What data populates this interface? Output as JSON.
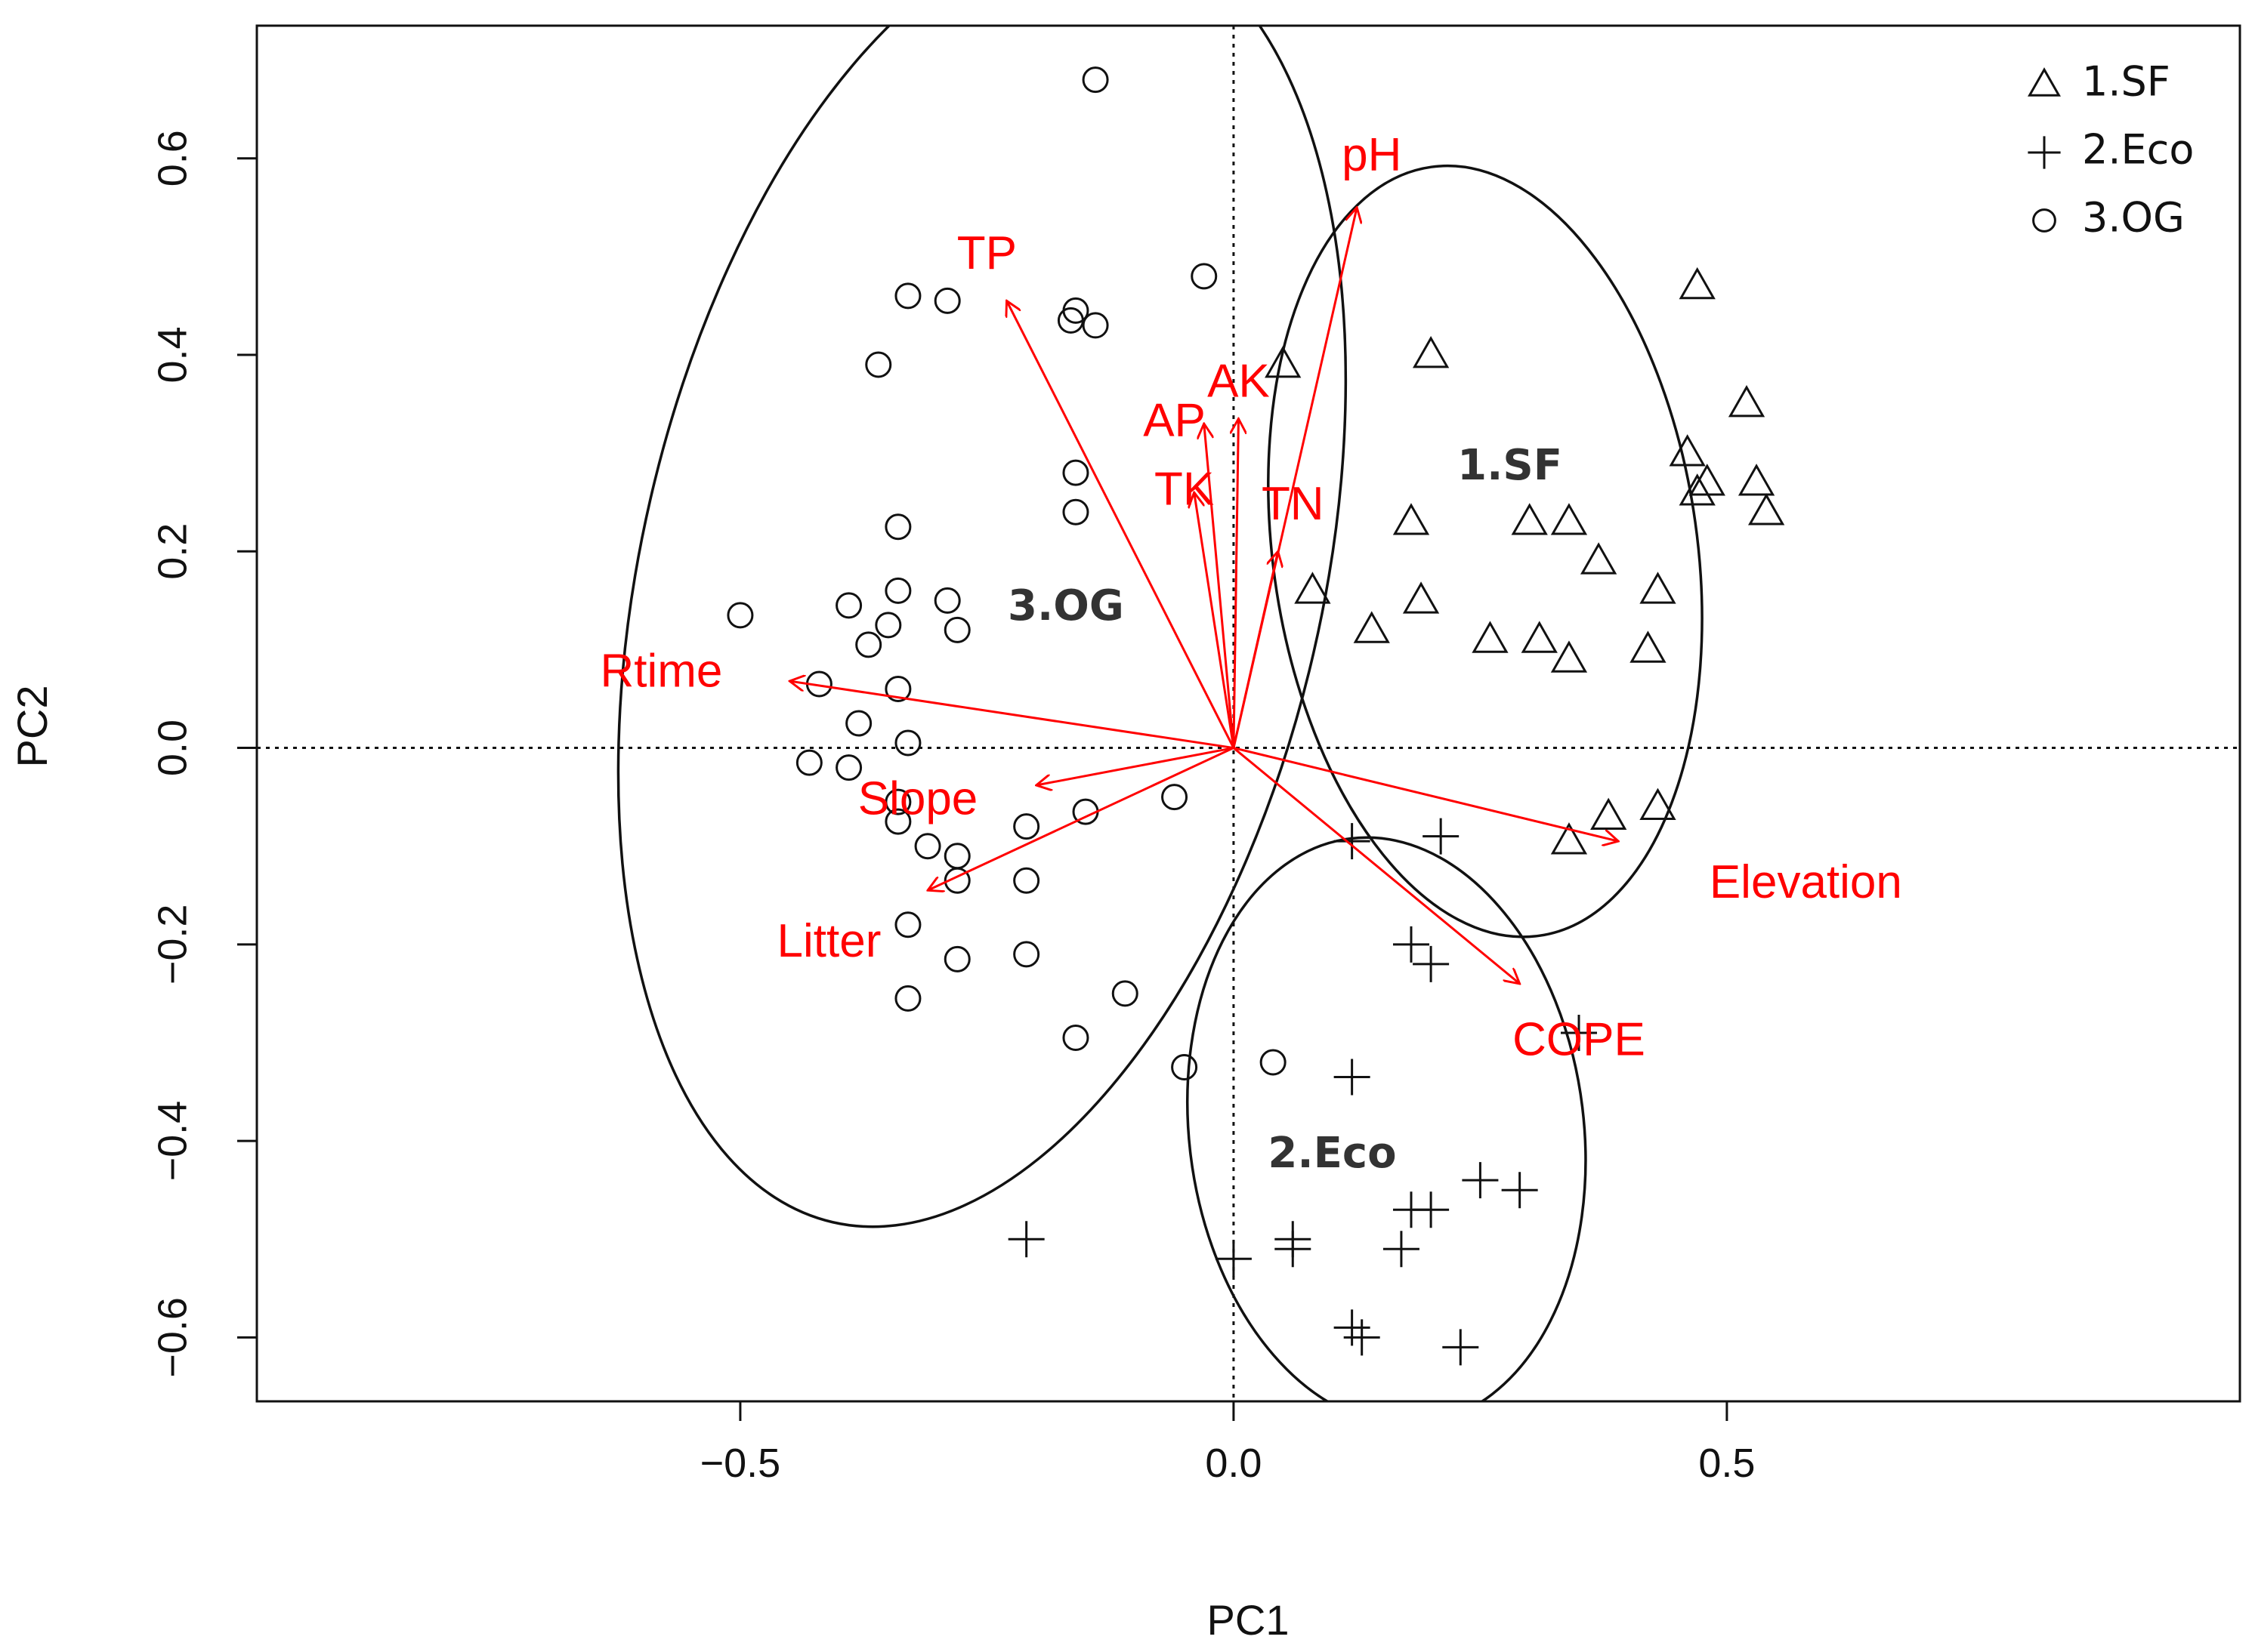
{
  "chart_data": {
    "type": "scatter",
    "subtype": "pca-biplot",
    "xlabel": "PC1",
    "ylabel": "PC2",
    "xlim": [
      -0.99,
      1.02
    ],
    "ylim": [
      -0.665,
      0.735
    ],
    "xticks": [
      {
        "value": -0.5,
        "label": "−0.5"
      },
      {
        "value": 0.0,
        "label": "0.0"
      },
      {
        "value": 0.5,
        "label": "0.5"
      }
    ],
    "yticks": [
      {
        "value": -0.6,
        "label": "−0.6"
      },
      {
        "value": -0.4,
        "label": "−0.4"
      },
      {
        "value": -0.2,
        "label": "−0.2"
      },
      {
        "value": 0.0,
        "label": "0.0"
      },
      {
        "value": 0.2,
        "label": "0.2"
      },
      {
        "value": 0.4,
        "label": "0.4"
      },
      {
        "value": 0.6,
        "label": "0.6"
      }
    ],
    "reference_lines": {
      "x": 0,
      "y": 0,
      "style": "dotted"
    },
    "legend": {
      "position": "top-right",
      "entries": [
        {
          "label": "1.SF",
          "marker": "triangle"
        },
        {
          "label": "2.Eco",
          "marker": "plus"
        },
        {
          "label": "3.OG",
          "marker": "circle"
        }
      ]
    },
    "series": [
      {
        "name": "1.SF",
        "marker": "triangle",
        "points": [
          [
            0.05,
            0.39
          ],
          [
            0.2,
            0.4
          ],
          [
            0.47,
            0.47
          ],
          [
            0.52,
            0.35
          ],
          [
            0.46,
            0.3
          ],
          [
            0.47,
            0.26
          ],
          [
            0.48,
            0.27
          ],
          [
            0.53,
            0.27
          ],
          [
            0.54,
            0.24
          ],
          [
            0.18,
            0.23
          ],
          [
            0.3,
            0.23
          ],
          [
            0.34,
            0.23
          ],
          [
            0.37,
            0.19
          ],
          [
            0.43,
            0.16
          ],
          [
            0.19,
            0.15
          ],
          [
            0.08,
            0.16
          ],
          [
            0.14,
            0.12
          ],
          [
            0.26,
            0.11
          ],
          [
            0.31,
            0.11
          ],
          [
            0.34,
            0.09
          ],
          [
            0.42,
            0.1
          ],
          [
            0.38,
            -0.07
          ],
          [
            0.43,
            -0.06
          ],
          [
            0.34,
            -0.095
          ]
        ]
      },
      {
        "name": "2.Eco",
        "marker": "plus",
        "points": [
          [
            0.12,
            -0.095
          ],
          [
            0.21,
            -0.09
          ],
          [
            0.18,
            -0.2
          ],
          [
            0.2,
            -0.22
          ],
          [
            0.35,
            -0.29
          ],
          [
            0.12,
            -0.335
          ],
          [
            0.25,
            -0.44
          ],
          [
            0.29,
            -0.45
          ],
          [
            0.18,
            -0.47
          ],
          [
            0.2,
            -0.47
          ],
          [
            0.06,
            -0.5
          ],
          [
            0.06,
            -0.51
          ],
          [
            0.17,
            -0.51
          ],
          [
            0.0,
            -0.52
          ],
          [
            -0.21,
            -0.5
          ],
          [
            0.12,
            -0.59
          ],
          [
            0.13,
            -0.6
          ],
          [
            0.23,
            -0.61
          ]
        ]
      },
      {
        "name": "3.OG",
        "marker": "circle",
        "points": [
          [
            -0.14,
            0.68
          ],
          [
            -0.33,
            0.46
          ],
          [
            -0.29,
            0.455
          ],
          [
            -0.03,
            0.48
          ],
          [
            -0.16,
            0.445
          ],
          [
            -0.165,
            0.435
          ],
          [
            -0.14,
            0.43
          ],
          [
            -0.36,
            0.39
          ],
          [
            -0.16,
            0.28
          ],
          [
            -0.16,
            0.24
          ],
          [
            -0.34,
            0.225
          ],
          [
            -0.34,
            0.16
          ],
          [
            -0.39,
            0.145
          ],
          [
            -0.29,
            0.15
          ],
          [
            -0.35,
            0.125
          ],
          [
            -0.37,
            0.105
          ],
          [
            -0.28,
            0.12
          ],
          [
            -0.5,
            0.135
          ],
          [
            -0.42,
            0.065
          ],
          [
            -0.34,
            0.06
          ],
          [
            -0.38,
            0.025
          ],
          [
            -0.33,
            0.005
          ],
          [
            -0.43,
            -0.015
          ],
          [
            -0.39,
            -0.02
          ],
          [
            -0.34,
            -0.055
          ],
          [
            -0.06,
            -0.05
          ],
          [
            -0.15,
            -0.065
          ],
          [
            -0.21,
            -0.08
          ],
          [
            -0.34,
            -0.075
          ],
          [
            -0.31,
            -0.1
          ],
          [
            -0.28,
            -0.11
          ],
          [
            -0.28,
            -0.135
          ],
          [
            -0.21,
            -0.135
          ],
          [
            -0.33,
            -0.18
          ],
          [
            -0.28,
            -0.215
          ],
          [
            -0.21,
            -0.21
          ],
          [
            -0.11,
            -0.25
          ],
          [
            -0.33,
            -0.255
          ],
          [
            -0.16,
            -0.295
          ],
          [
            -0.05,
            -0.325
          ],
          [
            0.04,
            -0.32
          ]
        ]
      }
    ],
    "ellipses": [
      {
        "name": "1.SF",
        "cx": 0.255,
        "cy": 0.2,
        "rx": 0.215,
        "ry": 0.395,
        "rotation_deg": -8
      },
      {
        "name": "2.Eco",
        "cx": 0.155,
        "cy": -0.39,
        "rx": 0.2,
        "ry": 0.3,
        "rotation_deg": -7
      },
      {
        "name": "3.OG",
        "cx": -0.255,
        "cy": 0.175,
        "rx": 0.345,
        "ry": 0.675,
        "rotation_deg": 13
      }
    ],
    "group_labels": [
      {
        "text": "1.SF",
        "x": 0.28,
        "y": 0.285
      },
      {
        "text": "2.Eco",
        "x": 0.1,
        "y": -0.415
      },
      {
        "text": "3.OG",
        "x": -0.17,
        "y": 0.142
      }
    ],
    "loadings": [
      {
        "name": "pH",
        "x": 0.125,
        "y": 0.55,
        "label_x": 0.14,
        "label_y": 0.6
      },
      {
        "name": "TP",
        "x": -0.23,
        "y": 0.455,
        "label_x": -0.25,
        "label_y": 0.5
      },
      {
        "name": "AK",
        "x": 0.005,
        "y": 0.335,
        "label_x": 0.005,
        "label_y": 0.37
      },
      {
        "name": "AP",
        "x": -0.03,
        "y": 0.33,
        "label_x": -0.06,
        "label_y": 0.33
      },
      {
        "name": "TK",
        "x": -0.04,
        "y": 0.26,
        "label_x": -0.05,
        "label_y": 0.26
      },
      {
        "name": "TN",
        "x": 0.045,
        "y": 0.2,
        "label_x": 0.06,
        "label_y": 0.245
      },
      {
        "name": "Rtime",
        "x": -0.45,
        "y": 0.068,
        "label_x": -0.58,
        "label_y": 0.075
      },
      {
        "name": "Slope",
        "x": -0.2,
        "y": -0.038,
        "label_x": -0.32,
        "label_y": -0.055
      },
      {
        "name": "Litter",
        "x": -0.31,
        "y": -0.145,
        "label_x": -0.41,
        "label_y": -0.2
      },
      {
        "name": "Elevation",
        "x": 0.39,
        "y": -0.095,
        "label_x": 0.58,
        "label_y": -0.14
      },
      {
        "name": "COPE",
        "x": 0.29,
        "y": -0.24,
        "label_x": 0.35,
        "label_y": -0.3
      }
    ]
  },
  "colors": {
    "arrow": "#ff0000",
    "ink": "#111111",
    "group_label": "#333333"
  }
}
